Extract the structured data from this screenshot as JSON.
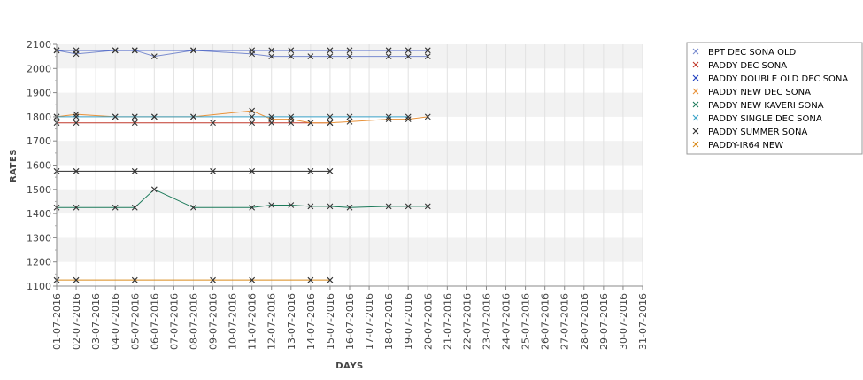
{
  "chart_data": {
    "type": "line",
    "title": "",
    "xlabel": "DAYS",
    "ylabel": "RATES",
    "ylim": [
      1100,
      2100
    ],
    "yticks": [
      1100,
      1200,
      1300,
      1400,
      1500,
      1600,
      1700,
      1800,
      1900,
      2000,
      2100
    ],
    "grid": "alternating-bands",
    "legend_position": "right",
    "categories": [
      "01-07-2016",
      "02-07-2016",
      "03-07-2016",
      "04-07-2016",
      "05-07-2016",
      "06-07-2016",
      "07-07-2016",
      "08-07-2016",
      "09-07-2016",
      "10-07-2016",
      "11-07-2016",
      "12-07-2016",
      "13-07-2016",
      "14-07-2016",
      "15-07-2016",
      "16-07-2016",
      "17-07-2016",
      "18-07-2016",
      "19-07-2016",
      "20-07-2016",
      "21-07-2016",
      "22-07-2016",
      "23-07-2016",
      "24-07-2016",
      "25-07-2016",
      "26-07-2016",
      "27-07-2016",
      "28-07-2016",
      "29-07-2016",
      "30-07-2016",
      "31-07-2016"
    ],
    "series": [
      {
        "name": "BPT DEC SONA OLD",
        "color": "#7a8ccf",
        "points": [
          [
            "01-07-2016",
            2075
          ],
          [
            "02-07-2016",
            2060
          ],
          [
            "04-07-2016",
            2075
          ],
          [
            "05-07-2016",
            2075
          ],
          [
            "06-07-2016",
            2050
          ],
          [
            "08-07-2016",
            2075
          ],
          [
            "11-07-2016",
            2060
          ],
          [
            "12-07-2016",
            2050
          ],
          [
            "13-07-2016",
            2050
          ],
          [
            "14-07-2016",
            2050
          ],
          [
            "15-07-2016",
            2050
          ],
          [
            "16-07-2016",
            2050
          ],
          [
            "18-07-2016",
            2050
          ],
          [
            "19-07-2016",
            2050
          ],
          [
            "20-07-2016",
            2050
          ]
        ]
      },
      {
        "name": "PADDY DEC SONA",
        "color": "#c0392b",
        "points": [
          [
            "01-07-2016",
            1775
          ],
          [
            "02-07-2016",
            1775
          ],
          [
            "05-07-2016",
            1775
          ],
          [
            "09-07-2016",
            1775
          ],
          [
            "11-07-2016",
            1775
          ],
          [
            "12-07-2016",
            1775
          ],
          [
            "13-07-2016",
            1775
          ],
          [
            "14-07-2016",
            1775
          ],
          [
            "15-07-2016",
            1775
          ]
        ]
      },
      {
        "name": "PADDY DOUBLE OLD DEC SONA",
        "color": "#1f3fbf",
        "points": [
          [
            "01-07-2016",
            2075
          ],
          [
            "02-07-2016",
            2075
          ],
          [
            "04-07-2016",
            2075
          ],
          [
            "05-07-2016",
            2075
          ],
          [
            "08-07-2016",
            2075
          ],
          [
            "11-07-2016",
            2075
          ],
          [
            "12-07-2016",
            2075
          ],
          [
            "13-07-2016",
            2075
          ],
          [
            "15-07-2016",
            2075
          ],
          [
            "16-07-2016",
            2075
          ],
          [
            "18-07-2016",
            2075
          ],
          [
            "19-07-2016",
            2075
          ],
          [
            "20-07-2016",
            2075
          ]
        ]
      },
      {
        "name": "PADDY NEW DEC SONA",
        "color": "#e8923a",
        "points": [
          [
            "01-07-2016",
            1800
          ],
          [
            "02-07-2016",
            1810
          ],
          [
            "04-07-2016",
            1800
          ],
          [
            "05-07-2016",
            1800
          ],
          [
            "06-07-2016",
            1800
          ],
          [
            "08-07-2016",
            1800
          ],
          [
            "11-07-2016",
            1825
          ],
          [
            "12-07-2016",
            1790
          ],
          [
            "13-07-2016",
            1790
          ],
          [
            "14-07-2016",
            1775
          ],
          [
            "15-07-2016",
            1775
          ],
          [
            "16-07-2016",
            1780
          ],
          [
            "18-07-2016",
            1790
          ],
          [
            "19-07-2016",
            1790
          ],
          [
            "20-07-2016",
            1800
          ]
        ]
      },
      {
        "name": "PADDY NEW KAVERI SONA",
        "color": "#1c7a5a",
        "points": [
          [
            "01-07-2016",
            1425
          ],
          [
            "02-07-2016",
            1425
          ],
          [
            "04-07-2016",
            1425
          ],
          [
            "05-07-2016",
            1425
          ],
          [
            "06-07-2016",
            1500
          ],
          [
            "08-07-2016",
            1425
          ],
          [
            "11-07-2016",
            1425
          ],
          [
            "12-07-2016",
            1435
          ],
          [
            "13-07-2016",
            1435
          ],
          [
            "14-07-2016",
            1430
          ],
          [
            "15-07-2016",
            1430
          ],
          [
            "16-07-2016",
            1425
          ],
          [
            "18-07-2016",
            1430
          ],
          [
            "19-07-2016",
            1430
          ],
          [
            "20-07-2016",
            1430
          ]
        ]
      },
      {
        "name": "PADDY SINGLE DEC SONA",
        "color": "#3aa3c8",
        "points": [
          [
            "01-07-2016",
            1800
          ],
          [
            "02-07-2016",
            1800
          ],
          [
            "04-07-2016",
            1800
          ],
          [
            "05-07-2016",
            1800
          ],
          [
            "06-07-2016",
            1800
          ],
          [
            "08-07-2016",
            1800
          ],
          [
            "11-07-2016",
            1800
          ],
          [
            "12-07-2016",
            1800
          ],
          [
            "13-07-2016",
            1800
          ],
          [
            "15-07-2016",
            1800
          ],
          [
            "16-07-2016",
            1800
          ],
          [
            "18-07-2016",
            1800
          ],
          [
            "19-07-2016",
            1800
          ]
        ]
      },
      {
        "name": "PADDY SUMMER SONA",
        "color": "#2b2b2b",
        "points": [
          [
            "01-07-2016",
            1575
          ],
          [
            "02-07-2016",
            1575
          ],
          [
            "05-07-2016",
            1575
          ],
          [
            "09-07-2016",
            1575
          ],
          [
            "11-07-2016",
            1575
          ],
          [
            "14-07-2016",
            1575
          ],
          [
            "15-07-2016",
            1575
          ]
        ]
      },
      {
        "name": "PADDY-IR64 NEW",
        "color": "#d98a1a",
        "points": [
          [
            "01-07-2016",
            1125
          ],
          [
            "02-07-2016",
            1125
          ],
          [
            "05-07-2016",
            1125
          ],
          [
            "09-07-2016",
            1125
          ],
          [
            "11-07-2016",
            1125
          ],
          [
            "14-07-2016",
            1125
          ],
          [
            "15-07-2016",
            1125
          ]
        ]
      }
    ]
  }
}
